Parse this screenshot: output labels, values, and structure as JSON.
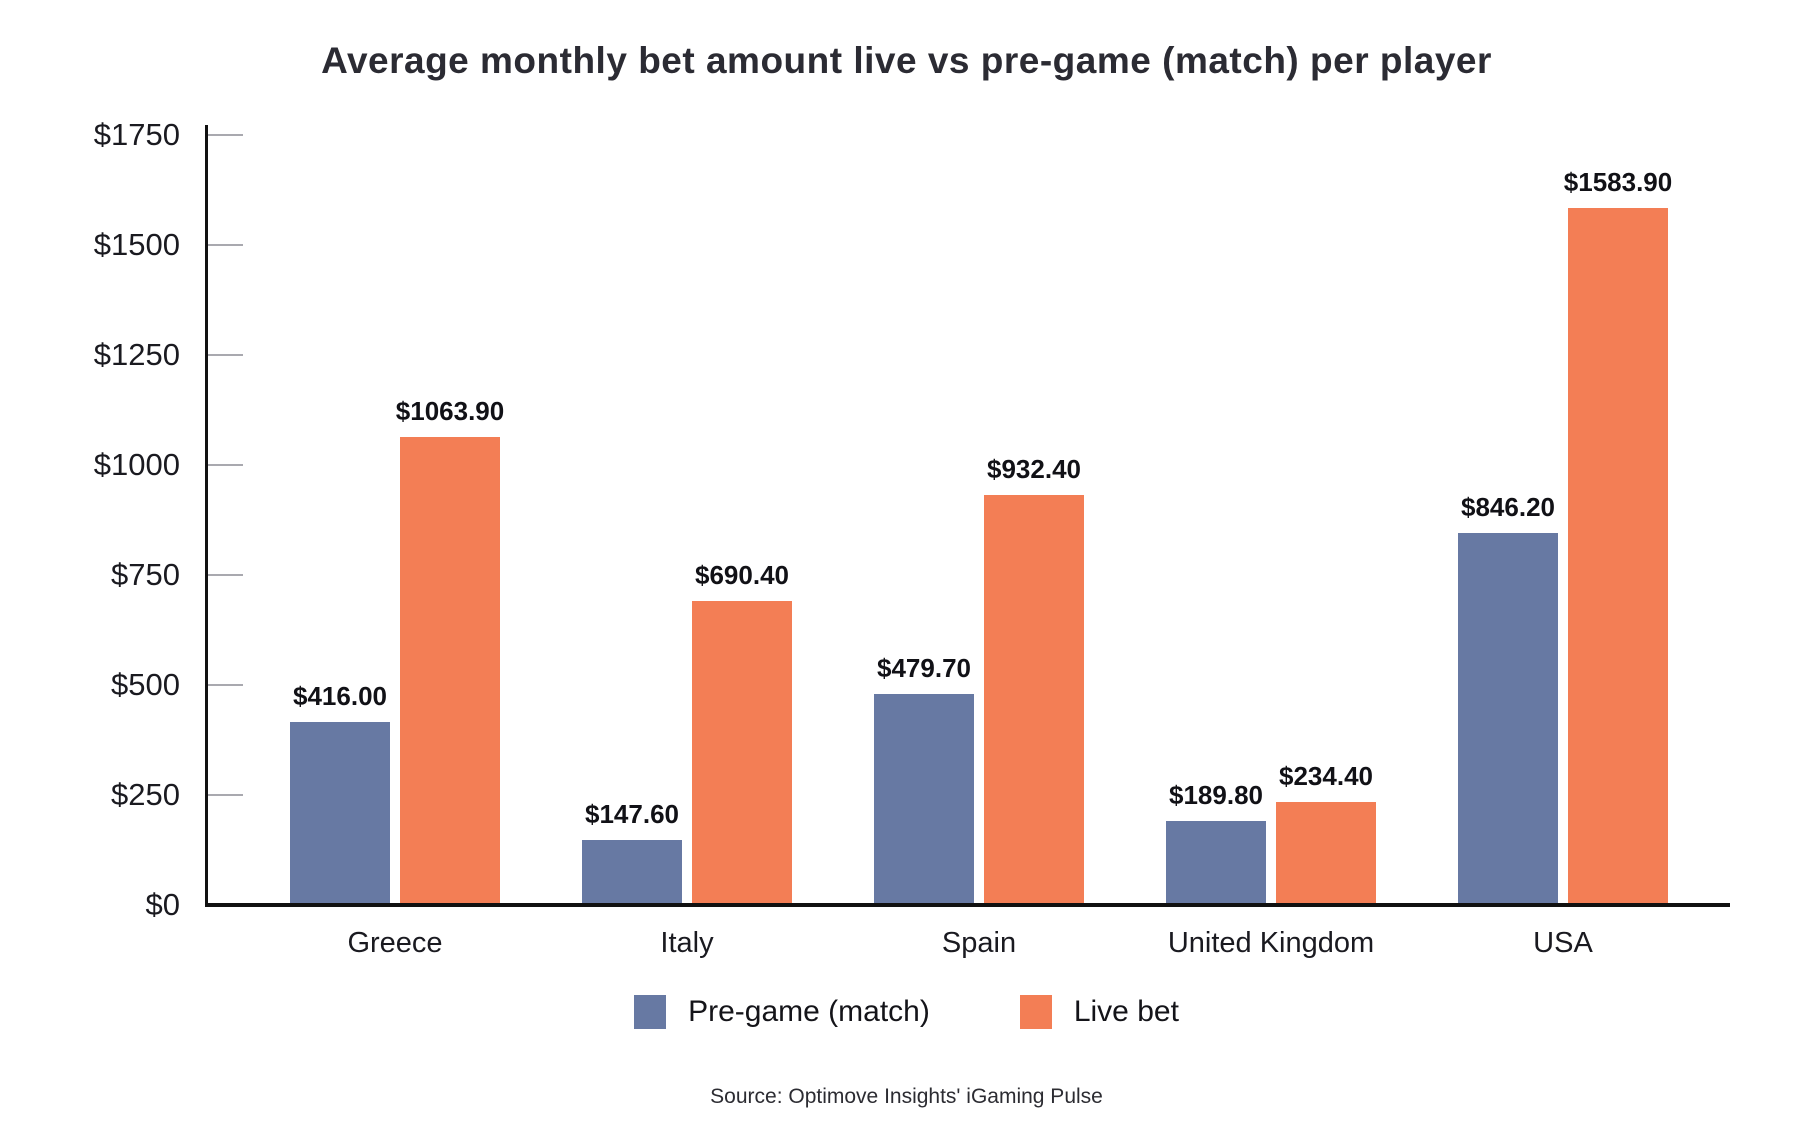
{
  "chart_data": {
    "type": "bar",
    "title": "Average monthly bet amount live vs pre-game (match) per player",
    "categories": [
      "Greece",
      "Italy",
      "Spain",
      "United Kingdom",
      "USA"
    ],
    "series": [
      {
        "name": "Pre-game (match)",
        "color": "#6779a3",
        "values": [
          416.0,
          147.6,
          479.7,
          189.8,
          846.2
        ],
        "labels": [
          "$416.00",
          "$147.60",
          "$479.70",
          "$189.80",
          "$846.20"
        ]
      },
      {
        "name": "Live bet",
        "color": "#f37e55",
        "values": [
          1063.9,
          690.4,
          932.4,
          234.4,
          1583.9
        ],
        "labels": [
          "$1063.90",
          "$690.40",
          "$932.40",
          "$234.40",
          "$1583.90"
        ]
      }
    ],
    "ylim": [
      0,
      1750
    ],
    "yticks": [
      {
        "value": 0,
        "label": "$0"
      },
      {
        "value": 250,
        "label": "$250"
      },
      {
        "value": 500,
        "label": "$500"
      },
      {
        "value": 750,
        "label": "$750"
      },
      {
        "value": 1000,
        "label": "$1000"
      },
      {
        "value": 1250,
        "label": "$1250"
      },
      {
        "value": 1500,
        "label": "$1500"
      },
      {
        "value": 1750,
        "label": "$1750"
      }
    ],
    "grid": false,
    "legend_position": "bottom",
    "source": "Source: Optimove Insights' iGaming Pulse"
  }
}
